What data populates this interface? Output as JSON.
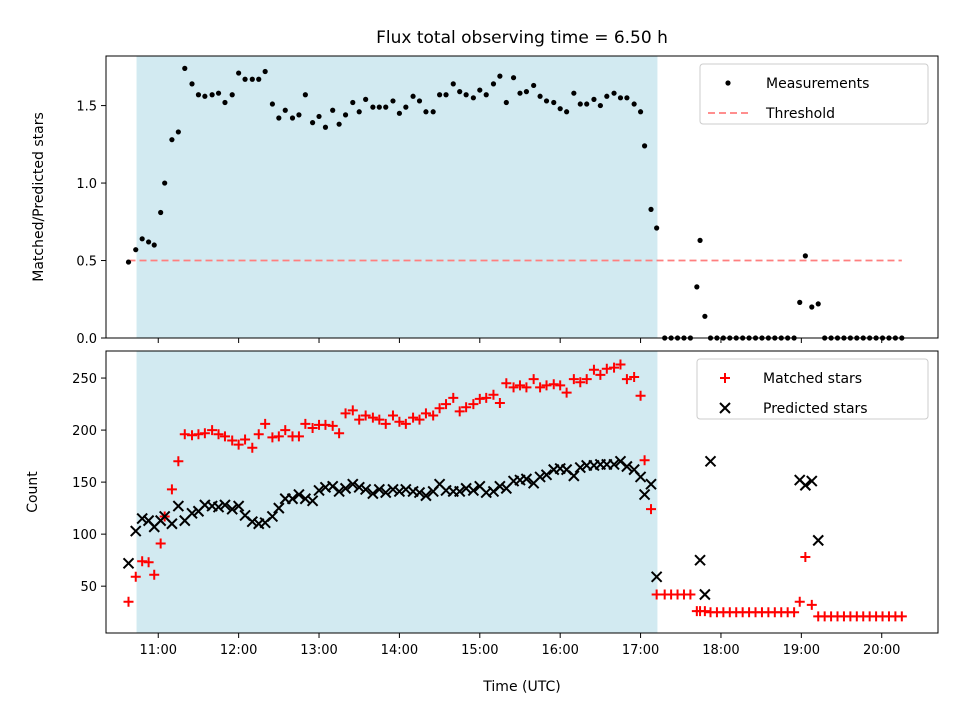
{
  "chart_data": {
    "title": "Flux total observing time = 6.50 h",
    "xlabel": "Time (UTC)",
    "x_units": "decimal hours UTC",
    "x_ticks": [
      {
        "value": 11,
        "label": "11:00"
      },
      {
        "value": 12,
        "label": "12:00"
      },
      {
        "value": 13,
        "label": "13:00"
      },
      {
        "value": 14,
        "label": "14:00"
      },
      {
        "value": 15,
        "label": "15:00"
      },
      {
        "value": 16,
        "label": "16:00"
      },
      {
        "value": 17,
        "label": "17:00"
      },
      {
        "value": 18,
        "label": "18:00"
      },
      {
        "value": 19,
        "label": "19:00"
      },
      {
        "value": 20,
        "label": "20:00"
      }
    ],
    "xlim": [
      10.35,
      20.7
    ],
    "observing_window": [
      10.73,
      17.21
    ],
    "colors": {
      "window": "#add8e6",
      "threshold": "#ff7f7f",
      "matched": "#ff0000",
      "predicted": "#000000",
      "measurements": "#000000"
    },
    "panels": [
      {
        "type": "scatter",
        "ylabel": "Matched/Predicted stars",
        "ylim": [
          0,
          1.82
        ],
        "yticks": [
          {
            "value": 0,
            "label": "0.0"
          },
          {
            "value": 0.5,
            "label": "0.5"
          },
          {
            "value": 1.0,
            "label": "1.0"
          },
          {
            "value": 1.5,
            "label": "1.5"
          }
        ],
        "legend": {
          "placement": "top-right",
          "entries": [
            "Measurements",
            "Threshold"
          ]
        },
        "threshold": {
          "name": "Threshold",
          "y": 0.5,
          "x_range": [
            10.63,
            20.25
          ]
        },
        "series": [
          {
            "name": "Measurements",
            "marker": "dot",
            "x": [
              10.63,
              10.72,
              10.8,
              10.88,
              10.95,
              11.03,
              11.08,
              11.17,
              11.25,
              11.33,
              11.42,
              11.5,
              11.58,
              11.67,
              11.75,
              11.83,
              11.92,
              12.0,
              12.08,
              12.17,
              12.25,
              12.33,
              12.42,
              12.5,
              12.58,
              12.67,
              12.75,
              12.83,
              12.92,
              13.0,
              13.08,
              13.17,
              13.25,
              13.33,
              13.42,
              13.5,
              13.58,
              13.67,
              13.75,
              13.83,
              13.92,
              14.0,
              14.08,
              14.17,
              14.25,
              14.33,
              14.42,
              14.5,
              14.58,
              14.67,
              14.75,
              14.83,
              14.92,
              15.0,
              15.08,
              15.17,
              15.25,
              15.33,
              15.42,
              15.5,
              15.58,
              15.67,
              15.75,
              15.83,
              15.92,
              16.0,
              16.08,
              16.17,
              16.25,
              16.33,
              16.42,
              16.5,
              16.58,
              16.67,
              16.75,
              16.83,
              16.92,
              17.0,
              17.05,
              17.13,
              17.2,
              17.3,
              17.38,
              17.46,
              17.54,
              17.62,
              17.7,
              17.74,
              17.8,
              17.87,
              17.95,
              18.03,
              18.11,
              18.19,
              18.27,
              18.35,
              18.43,
              18.51,
              18.59,
              18.67,
              18.75,
              18.83,
              18.91,
              18.98,
              19.05,
              19.13,
              19.21,
              19.29,
              19.37,
              19.45,
              19.53,
              19.61,
              19.69,
              19.77,
              19.85,
              19.93,
              20.01,
              20.09,
              20.17,
              20.25
            ],
            "y": [
              0.49,
              0.57,
              0.64,
              0.62,
              0.6,
              0.81,
              1.0,
              1.28,
              1.33,
              1.74,
              1.64,
              1.57,
              1.56,
              1.57,
              1.58,
              1.52,
              1.57,
              1.71,
              1.67,
              1.67,
              1.67,
              1.72,
              1.51,
              1.42,
              1.47,
              1.42,
              1.44,
              1.57,
              1.39,
              1.43,
              1.36,
              1.47,
              1.38,
              1.44,
              1.52,
              1.46,
              1.54,
              1.49,
              1.49,
              1.49,
              1.53,
              1.45,
              1.49,
              1.56,
              1.53,
              1.46,
              1.46,
              1.57,
              1.57,
              1.64,
              1.59,
              1.57,
              1.55,
              1.6,
              1.57,
              1.64,
              1.69,
              1.52,
              1.68,
              1.58,
              1.59,
              1.63,
              1.56,
              1.53,
              1.52,
              1.48,
              1.46,
              1.58,
              1.51,
              1.51,
              1.54,
              1.5,
              1.56,
              1.58,
              1.55,
              1.55,
              1.51,
              1.46,
              1.24,
              0.83,
              0.71,
              0,
              0,
              0,
              0,
              0,
              0.33,
              0.63,
              0.14,
              0,
              0,
              0,
              0,
              0,
              0,
              0,
              0,
              0,
              0,
              0,
              0,
              0,
              0,
              0.23,
              0.53,
              0.2,
              0.22,
              0,
              0,
              0,
              0,
              0,
              0,
              0,
              0,
              0,
              0,
              0,
              0,
              0
            ]
          }
        ]
      },
      {
        "type": "scatter",
        "ylabel": "Count",
        "ylim": [
          5,
          276
        ],
        "yticks": [
          {
            "value": 50,
            "label": "50"
          },
          {
            "value": 100,
            "label": "100"
          },
          {
            "value": 150,
            "label": "150"
          },
          {
            "value": 200,
            "label": "200"
          },
          {
            "value": 250,
            "label": "250"
          }
        ],
        "legend": {
          "placement": "top-right",
          "entries": [
            "Matched stars",
            "Predicted stars"
          ]
        },
        "series": [
          {
            "name": "Matched stars",
            "marker": "plus",
            "x": [
              10.63,
              10.72,
              10.8,
              10.88,
              10.95,
              11.03,
              11.08,
              11.17,
              11.25,
              11.33,
              11.42,
              11.5,
              11.58,
              11.67,
              11.75,
              11.83,
              11.92,
              12.0,
              12.08,
              12.17,
              12.25,
              12.33,
              12.42,
              12.5,
              12.58,
              12.67,
              12.75,
              12.83,
              12.92,
              13.0,
              13.08,
              13.17,
              13.25,
              13.33,
              13.42,
              13.5,
              13.58,
              13.67,
              13.75,
              13.83,
              13.92,
              14.0,
              14.08,
              14.17,
              14.25,
              14.33,
              14.42,
              14.5,
              14.58,
              14.67,
              14.75,
              14.83,
              14.92,
              15.0,
              15.08,
              15.17,
              15.25,
              15.33,
              15.42,
              15.5,
              15.58,
              15.67,
              15.75,
              15.83,
              15.92,
              16.0,
              16.08,
              16.17,
              16.25,
              16.33,
              16.42,
              16.5,
              16.58,
              16.67,
              16.75,
              16.83,
              16.92,
              17.0,
              17.05,
              17.13,
              17.2,
              17.3,
              17.38,
              17.46,
              17.54,
              17.62,
              17.7,
              17.74,
              17.8,
              17.87,
              17.95,
              18.03,
              18.11,
              18.19,
              18.27,
              18.35,
              18.43,
              18.51,
              18.59,
              18.67,
              18.75,
              18.83,
              18.91,
              18.98,
              19.05,
              19.13,
              19.21,
              19.29,
              19.37,
              19.45,
              19.53,
              19.61,
              19.69,
              19.77,
              19.85,
              19.93,
              20.01,
              20.09,
              20.17,
              20.25
            ],
            "y": [
              35,
              59,
              74,
              73,
              61,
              91,
              117,
              143,
              170,
              196,
              195,
              196,
              197,
              200,
              196,
              194,
              190,
              186,
              191,
              183,
              196,
              206,
              193,
              194,
              200,
              194,
              194,
              206,
              202,
              205,
              205,
              204,
              197,
              216,
              219,
              210,
              214,
              212,
              210,
              206,
              214,
              208,
              206,
              212,
              210,
              216,
              214,
              221,
              225,
              231,
              218,
              222,
              225,
              230,
              231,
              234,
              226,
              245,
              241,
              243,
              241,
              249,
              241,
              243,
              244,
              243,
              236,
              249,
              246,
              249,
              258,
              253,
              259,
              260,
              263,
              249,
              251,
              233,
              171,
              124,
              42,
              42,
              42,
              42,
              42,
              42,
              26,
              26,
              26,
              25,
              25,
              25,
              25,
              25,
              25,
              25,
              25,
              25,
              25,
              25,
              25,
              25,
              25,
              35,
              78,
              32,
              21,
              21,
              21,
              21,
              21,
              21,
              21,
              21,
              21,
              21,
              21,
              21,
              21,
              21
            ]
          },
          {
            "name": "Predicted stars",
            "marker": "x",
            "x": [
              10.63,
              10.72,
              10.8,
              10.88,
              10.95,
              11.03,
              11.08,
              11.17,
              11.25,
              11.33,
              11.42,
              11.5,
              11.58,
              11.67,
              11.75,
              11.83,
              11.92,
              12.0,
              12.08,
              12.17,
              12.25,
              12.33,
              12.42,
              12.5,
              12.58,
              12.67,
              12.75,
              12.83,
              12.92,
              13.0,
              13.08,
              13.17,
              13.25,
              13.33,
              13.42,
              13.5,
              13.58,
              13.67,
              13.75,
              13.83,
              13.92,
              14.0,
              14.08,
              14.17,
              14.25,
              14.33,
              14.42,
              14.5,
              14.58,
              14.67,
              14.75,
              14.83,
              14.92,
              15.0,
              15.08,
              15.17,
              15.25,
              15.33,
              15.42,
              15.5,
              15.58,
              15.67,
              15.75,
              15.83,
              15.92,
              16.0,
              16.08,
              16.17,
              16.25,
              16.33,
              16.42,
              16.5,
              16.58,
              16.67,
              16.75,
              16.83,
              16.92,
              17.0,
              17.05,
              17.13,
              17.2,
              17.74,
              17.8,
              17.87,
              18.98,
              19.05,
              19.13,
              19.21
            ],
            "y": [
              72,
              103,
              115,
              113,
              107,
              113,
              117,
              110,
              127,
              113,
              120,
              122,
              128,
              127,
              126,
              128,
              124,
              127,
              118,
              112,
              110,
              111,
              117,
              125,
              134,
              134,
              138,
              134,
              132,
              142,
              145,
              146,
              141,
              144,
              148,
              145,
              143,
              139,
              143,
              140,
              143,
              141,
              143,
              141,
              140,
              137,
              141,
              148,
              142,
              141,
              141,
              144,
              142,
              146,
              140,
              141,
              146,
              144,
              151,
              152,
              153,
              149,
              155,
              157,
              162,
              163,
              162,
              156,
              164,
              166,
              166,
              167,
              167,
              167,
              170,
              165,
              162,
              155,
              138,
              148,
              59,
              75,
              42,
              170,
              152,
              147,
              151,
              94
            ]
          }
        ]
      }
    ]
  }
}
